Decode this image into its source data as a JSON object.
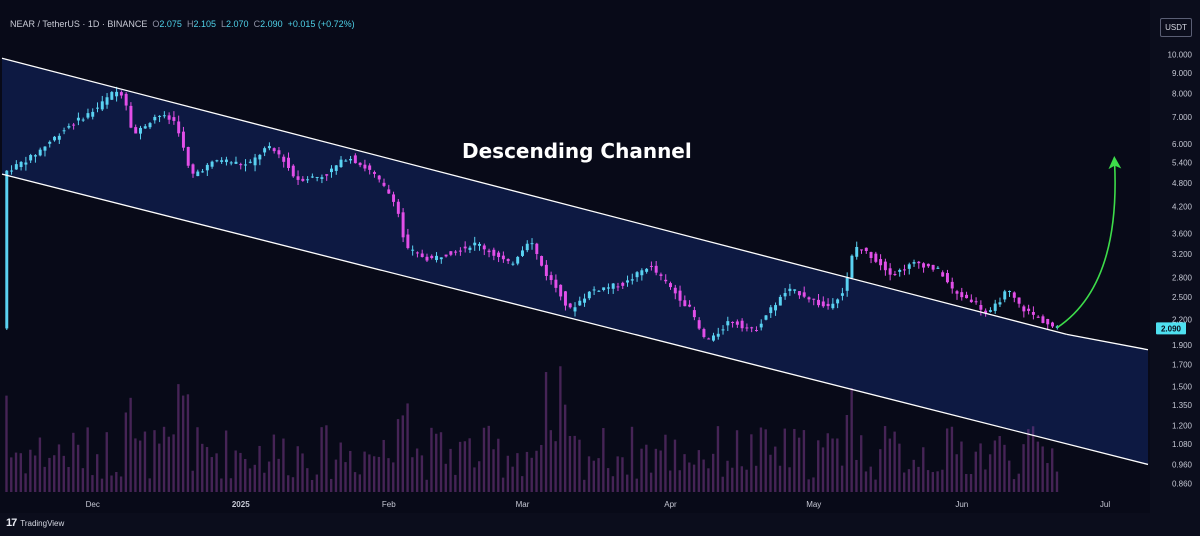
{
  "header": {
    "symbol": "NEAR / TetherUS · 1D · BINANCE",
    "o_label": "O",
    "o_value": "2.075",
    "h_label": "H",
    "h_value": "2.105",
    "l_label": "L",
    "l_value": "2.070",
    "c_label": "C",
    "c_value": "2.090",
    "change": "+0.015 (+0.72%)"
  },
  "unit_button": "USDT",
  "branding": {
    "name": "TradingView"
  },
  "colors": {
    "background": "#080a18",
    "channel_fill": "#0e1c4a",
    "up_candle": "#5ad2f2",
    "down_candle": "#e24fe8",
    "volume": "#7a3a8a",
    "channel_line": "#ffffff",
    "arrow": "#3ddc4a",
    "price_tag": "#4fe0f0"
  },
  "chart_data": {
    "type": "candlestick",
    "title": "",
    "annotation": "Descending Channel",
    "y_scale": "log",
    "ylim": [
      0.82,
      11.0
    ],
    "y_ticks": [
      "10.000",
      "9.000",
      "8.000",
      "7.000",
      "6.000",
      "5.400",
      "4.800",
      "4.200",
      "3.600",
      "3.200",
      "2.800",
      "2.500",
      "2.200",
      "1.900",
      "1.700",
      "1.500",
      "1.350",
      "1.200",
      "1.080",
      "0.960",
      "0.860"
    ],
    "x_ticks": [
      "Dec",
      "2025",
      "Feb",
      "Mar",
      "Apr",
      "May",
      "Jun",
      "Jul"
    ],
    "x_tick_dates": [
      "2024-12-01",
      "2025-01-01",
      "2025-02-01",
      "2025-03-01",
      "2025-04-01",
      "2025-05-01",
      "2025-06-01",
      "2025-07-01"
    ],
    "xlim": [
      "2024-11-12",
      "2025-07-10"
    ],
    "last_price": "2.090",
    "price_path": [
      [
        "2024-11-13",
        5.1
      ],
      [
        "2024-11-19",
        5.6
      ],
      [
        "2024-11-26",
        6.6
      ],
      [
        "2024-12-02",
        7.3
      ],
      [
        "2024-12-06",
        8.1
      ],
      [
        "2024-12-08",
        8.0
      ],
      [
        "2024-12-10",
        6.3
      ],
      [
        "2024-12-15",
        7.1
      ],
      [
        "2024-12-19",
        6.8
      ],
      [
        "2024-12-22",
        5.0
      ],
      [
        "2024-12-28",
        5.5
      ],
      [
        "2025-01-03",
        5.3
      ],
      [
        "2025-01-07",
        5.9
      ],
      [
        "2025-01-10",
        5.6
      ],
      [
        "2025-01-13",
        4.9
      ],
      [
        "2025-01-19",
        5.0
      ],
      [
        "2025-01-24",
        5.6
      ],
      [
        "2025-01-29",
        5.1
      ],
      [
        "2025-02-03",
        4.3
      ],
      [
        "2025-02-05",
        3.3
      ],
      [
        "2025-02-10",
        3.1
      ],
      [
        "2025-02-20",
        3.4
      ],
      [
        "2025-02-27",
        3.0
      ],
      [
        "2025-03-03",
        3.5
      ],
      [
        "2025-03-06",
        2.9
      ],
      [
        "2025-03-10",
        2.5
      ],
      [
        "2025-03-11",
        2.3
      ],
      [
        "2025-03-16",
        2.6
      ],
      [
        "2025-03-23",
        2.7
      ],
      [
        "2025-03-28",
        3.0
      ],
      [
        "2025-04-02",
        2.6
      ],
      [
        "2025-04-06",
        2.3
      ],
      [
        "2025-04-08",
        2.0
      ],
      [
        "2025-04-10",
        1.95
      ],
      [
        "2025-04-14",
        2.2
      ],
      [
        "2025-04-19",
        2.05
      ],
      [
        "2025-04-22",
        2.3
      ],
      [
        "2025-04-26",
        2.6
      ],
      [
        "2025-04-29",
        2.55
      ],
      [
        "2025-05-04",
        2.35
      ],
      [
        "2025-05-08",
        2.6
      ],
      [
        "2025-05-10",
        3.35
      ],
      [
        "2025-05-13",
        3.2
      ],
      [
        "2025-05-18",
        2.85
      ],
      [
        "2025-05-23",
        3.05
      ],
      [
        "2025-05-28",
        2.9
      ],
      [
        "2025-05-31",
        2.55
      ],
      [
        "2025-06-04",
        2.45
      ],
      [
        "2025-06-07",
        2.25
      ],
      [
        "2025-06-11",
        2.6
      ],
      [
        "2025-06-14",
        2.35
      ],
      [
        "2025-06-18",
        2.2
      ],
      [
        "2025-06-21",
        2.09
      ]
    ],
    "channel_upper": [
      [
        "2024-11-12",
        9.8
      ],
      [
        "2025-06-23",
        2.02
      ]
    ],
    "channel_lower": [
      [
        "2024-11-12",
        5.05
      ],
      [
        "2025-07-10",
        0.96
      ]
    ],
    "channel_mid_end": [
      [
        "2025-07-10",
        1.85
      ]
    ],
    "projection_arrow": {
      "from": [
        "2025-06-21",
        2.1
      ],
      "to": [
        "2025-07-03",
        5.4
      ]
    }
  }
}
